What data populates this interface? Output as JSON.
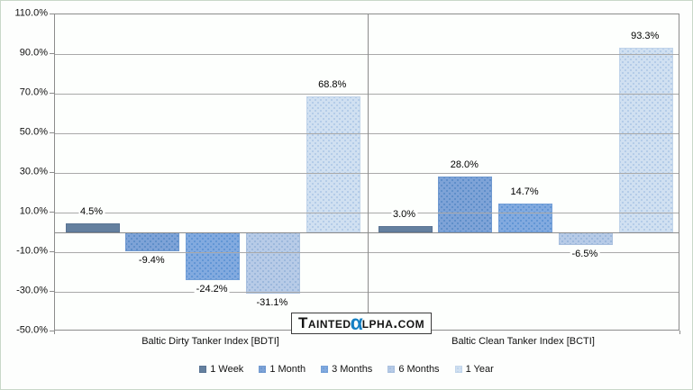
{
  "chart_data": {
    "type": "bar",
    "title": "",
    "categories": [
      "Baltic Dirty Tanker Index [BDTI]",
      "Baltic Clean Tanker Index [BCTI]"
    ],
    "series": [
      {
        "name": "1 Week",
        "values": [
          4.5,
          3.0
        ],
        "labels": [
          "4.5%",
          "3.0%"
        ],
        "fill": "#64809f",
        "dot": "#64809f",
        "border": "#5a7493",
        "textured": false
      },
      {
        "name": "1 Month",
        "values": [
          -9.4,
          28.0
        ],
        "labels": [
          "-9.4%",
          "28.0%"
        ],
        "fill": "#7ea3d7",
        "dot": "#5588c6",
        "border": "#7099cf",
        "textured": true
      },
      {
        "name": "3 Months",
        "values": [
          -24.2,
          14.7
        ],
        "labels": [
          "-24.2%",
          "14.7%"
        ],
        "fill": "#82aadf",
        "dot": "#578fd2",
        "border": "#74a0d7",
        "textured": true
      },
      {
        "name": "6 Months",
        "values": [
          -31.1,
          -6.5
        ],
        "labels": [
          "-31.1%",
          "-6.5%"
        ],
        "fill": "#b7cbe7",
        "dot": "#93b1d8",
        "border": "#a9c0de",
        "textured": true
      },
      {
        "name": "1 Year",
        "values": [
          68.8,
          93.3
        ],
        "labels": [
          "68.8%",
          "93.3%"
        ],
        "fill": "#d0e0f1",
        "dot": "#aac6e5",
        "border": "#c2d5ea",
        "textured": true
      }
    ],
    "y_ticks": [
      {
        "label": "110.0%",
        "value": 110
      },
      {
        "label": "90.0%",
        "value": 90
      },
      {
        "label": "70.0%",
        "value": 70
      },
      {
        "label": "50.0%",
        "value": 50
      },
      {
        "label": "30.0%",
        "value": 30
      },
      {
        "label": "10.0%",
        "value": 10
      },
      {
        "label": "-10.0%",
        "value": -10
      },
      {
        "label": "-30.0%",
        "value": -30
      },
      {
        "label": "-50.0%",
        "value": -50
      }
    ],
    "ylim": [
      -50,
      110
    ],
    "grid": true,
    "legend_position": "bottom"
  },
  "watermark": {
    "prefix": "Tainted",
    "alpha_char": "α",
    "suffix": "lpha.com",
    "alpha_color": "#1580c4"
  }
}
